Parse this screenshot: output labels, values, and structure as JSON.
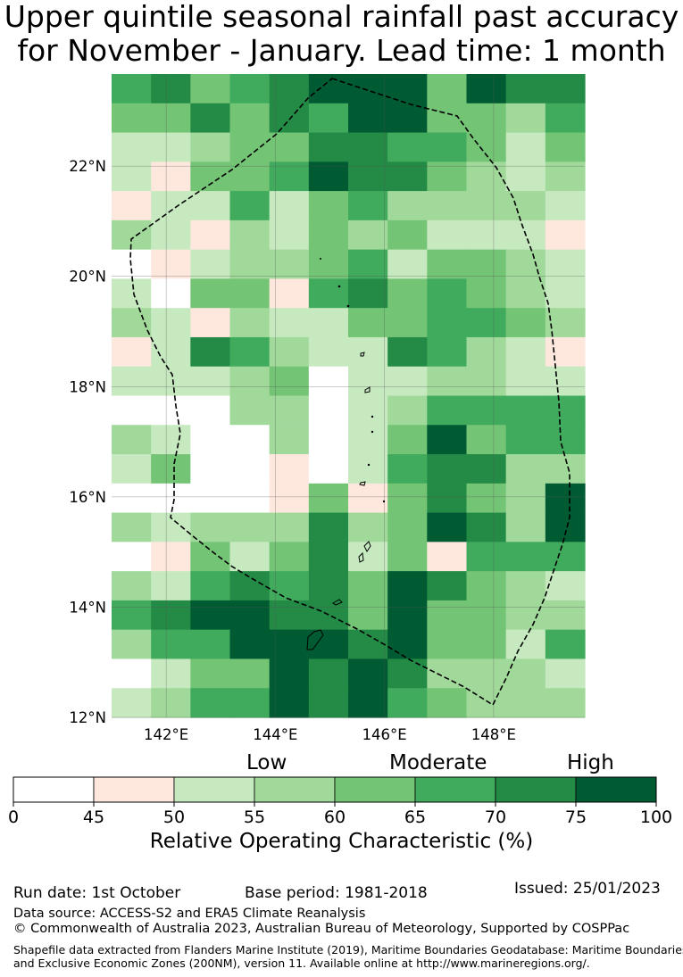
{
  "title": {
    "line1": "Upper quintile seasonal rainfall past accuracy",
    "line2": "for November - January. Lead time: 1 month"
  },
  "map": {
    "lon_range": [
      141.0,
      149.67
    ],
    "lat_range": [
      12.0,
      23.67
    ],
    "cell_deg": 0.833,
    "lat_ticks": [
      "12°N",
      "14°N",
      "16°N",
      "18°N",
      "20°N",
      "22°N"
    ],
    "lat_tick_values": [
      12,
      14,
      16,
      18,
      20,
      22
    ],
    "lon_ticks": [
      "142°E",
      "144°E",
      "146°E",
      "148°E"
    ],
    "lon_tick_values": [
      142,
      144,
      146,
      148
    ],
    "grid_note": "rows listed north to south, columns west to east; values are colour-bin indices (0 = 0-45, 1 = 45-50, 2 = 50-55, 3 = 55-60, 4 = 60-65, 5 = 65-70, 6 = 70-75, 7 = 75-100)",
    "grid": [
      [
        5,
        6,
        4,
        5,
        6,
        7,
        7,
        7,
        4,
        7,
        6,
        6
      ],
      [
        4,
        4,
        6,
        4,
        6,
        5,
        7,
        7,
        4,
        4,
        3,
        5
      ],
      [
        2,
        2,
        3,
        4,
        4,
        6,
        6,
        5,
        5,
        4,
        2,
        4
      ],
      [
        2,
        1,
        4,
        4,
        5,
        7,
        6,
        6,
        4,
        3,
        2,
        3
      ],
      [
        1,
        2,
        2,
        5,
        2,
        4,
        5,
        3,
        3,
        3,
        3,
        2
      ],
      [
        3,
        2,
        1,
        3,
        2,
        4,
        3,
        4,
        2,
        2,
        2,
        1
      ],
      [
        0,
        1,
        2,
        3,
        3,
        4,
        5,
        2,
        4,
        4,
        3,
        2
      ],
      [
        2,
        0,
        4,
        4,
        1,
        5,
        6,
        4,
        5,
        4,
        3,
        2
      ],
      [
        3,
        2,
        1,
        3,
        2,
        2,
        4,
        4,
        5,
        5,
        4,
        3
      ],
      [
        1,
        2,
        6,
        5,
        3,
        2,
        2,
        6,
        5,
        3,
        2,
        1
      ],
      [
        2,
        2,
        2,
        3,
        4,
        0,
        2,
        2,
        3,
        3,
        2,
        2
      ],
      [
        0,
        0,
        0,
        3,
        3,
        0,
        2,
        3,
        5,
        5,
        5,
        5
      ],
      [
        3,
        2,
        0,
        0,
        3,
        0,
        2,
        4,
        7,
        4,
        5,
        5
      ],
      [
        2,
        4,
        0,
        0,
        1,
        0,
        2,
        5,
        6,
        6,
        3,
        3
      ],
      [
        0,
        0,
        0,
        0,
        1,
        4,
        1,
        4,
        6,
        4,
        3,
        7
      ],
      [
        3,
        2,
        3,
        3,
        3,
        6,
        3,
        4,
        7,
        6,
        3,
        7
      ],
      [
        0,
        1,
        4,
        2,
        4,
        6,
        2,
        4,
        1,
        5,
        5,
        5
      ],
      [
        3,
        2,
        5,
        6,
        5,
        6,
        4,
        7,
        6,
        4,
        3,
        2
      ],
      [
        5,
        6,
        7,
        7,
        6,
        6,
        4,
        7,
        4,
        4,
        3,
        3
      ],
      [
        3,
        5,
        5,
        7,
        7,
        7,
        6,
        7,
        4,
        4,
        2,
        5
      ],
      [
        0,
        2,
        4,
        4,
        7,
        6,
        7,
        6,
        3,
        3,
        3,
        2
      ],
      [
        2,
        3,
        5,
        5,
        7,
        6,
        7,
        5,
        4,
        3,
        3,
        3
      ]
    ]
  },
  "colorbar": {
    "ticks": [
      "0",
      "45",
      "50",
      "55",
      "60",
      "65",
      "70",
      "75",
      "100"
    ],
    "colors": [
      "#ffffff",
      "#fee8de",
      "#c7e9c0",
      "#a1d99b",
      "#74c476",
      "#41ab5d",
      "#238b45",
      "#005a32"
    ],
    "category_labels": {
      "low": "Low",
      "moderate": "Moderate",
      "high": "High"
    },
    "label": "Relative Operating Characteristic (%)"
  },
  "footer": {
    "run_date": "Run date: 1st October",
    "base_period": "Base period: 1981-2018",
    "issued": "Issued: 25/01/2023",
    "data_source": "Data source: ACCESS-S2 and ERA5 Climate Reanalysis",
    "copyright": "© Commonwealth of Australia 2023, Australian Bureau of Meteorology, Supported by COSPPac",
    "shapefile_line1": "Shapefile data extracted from Flanders Marine Institute (2019), Maritime Boundaries Geodatabase: Maritime Boundaries",
    "shapefile_line2": "and Exclusive Economic Zones (200NM), version 11. Available online at http://www.marineregions.org/."
  }
}
